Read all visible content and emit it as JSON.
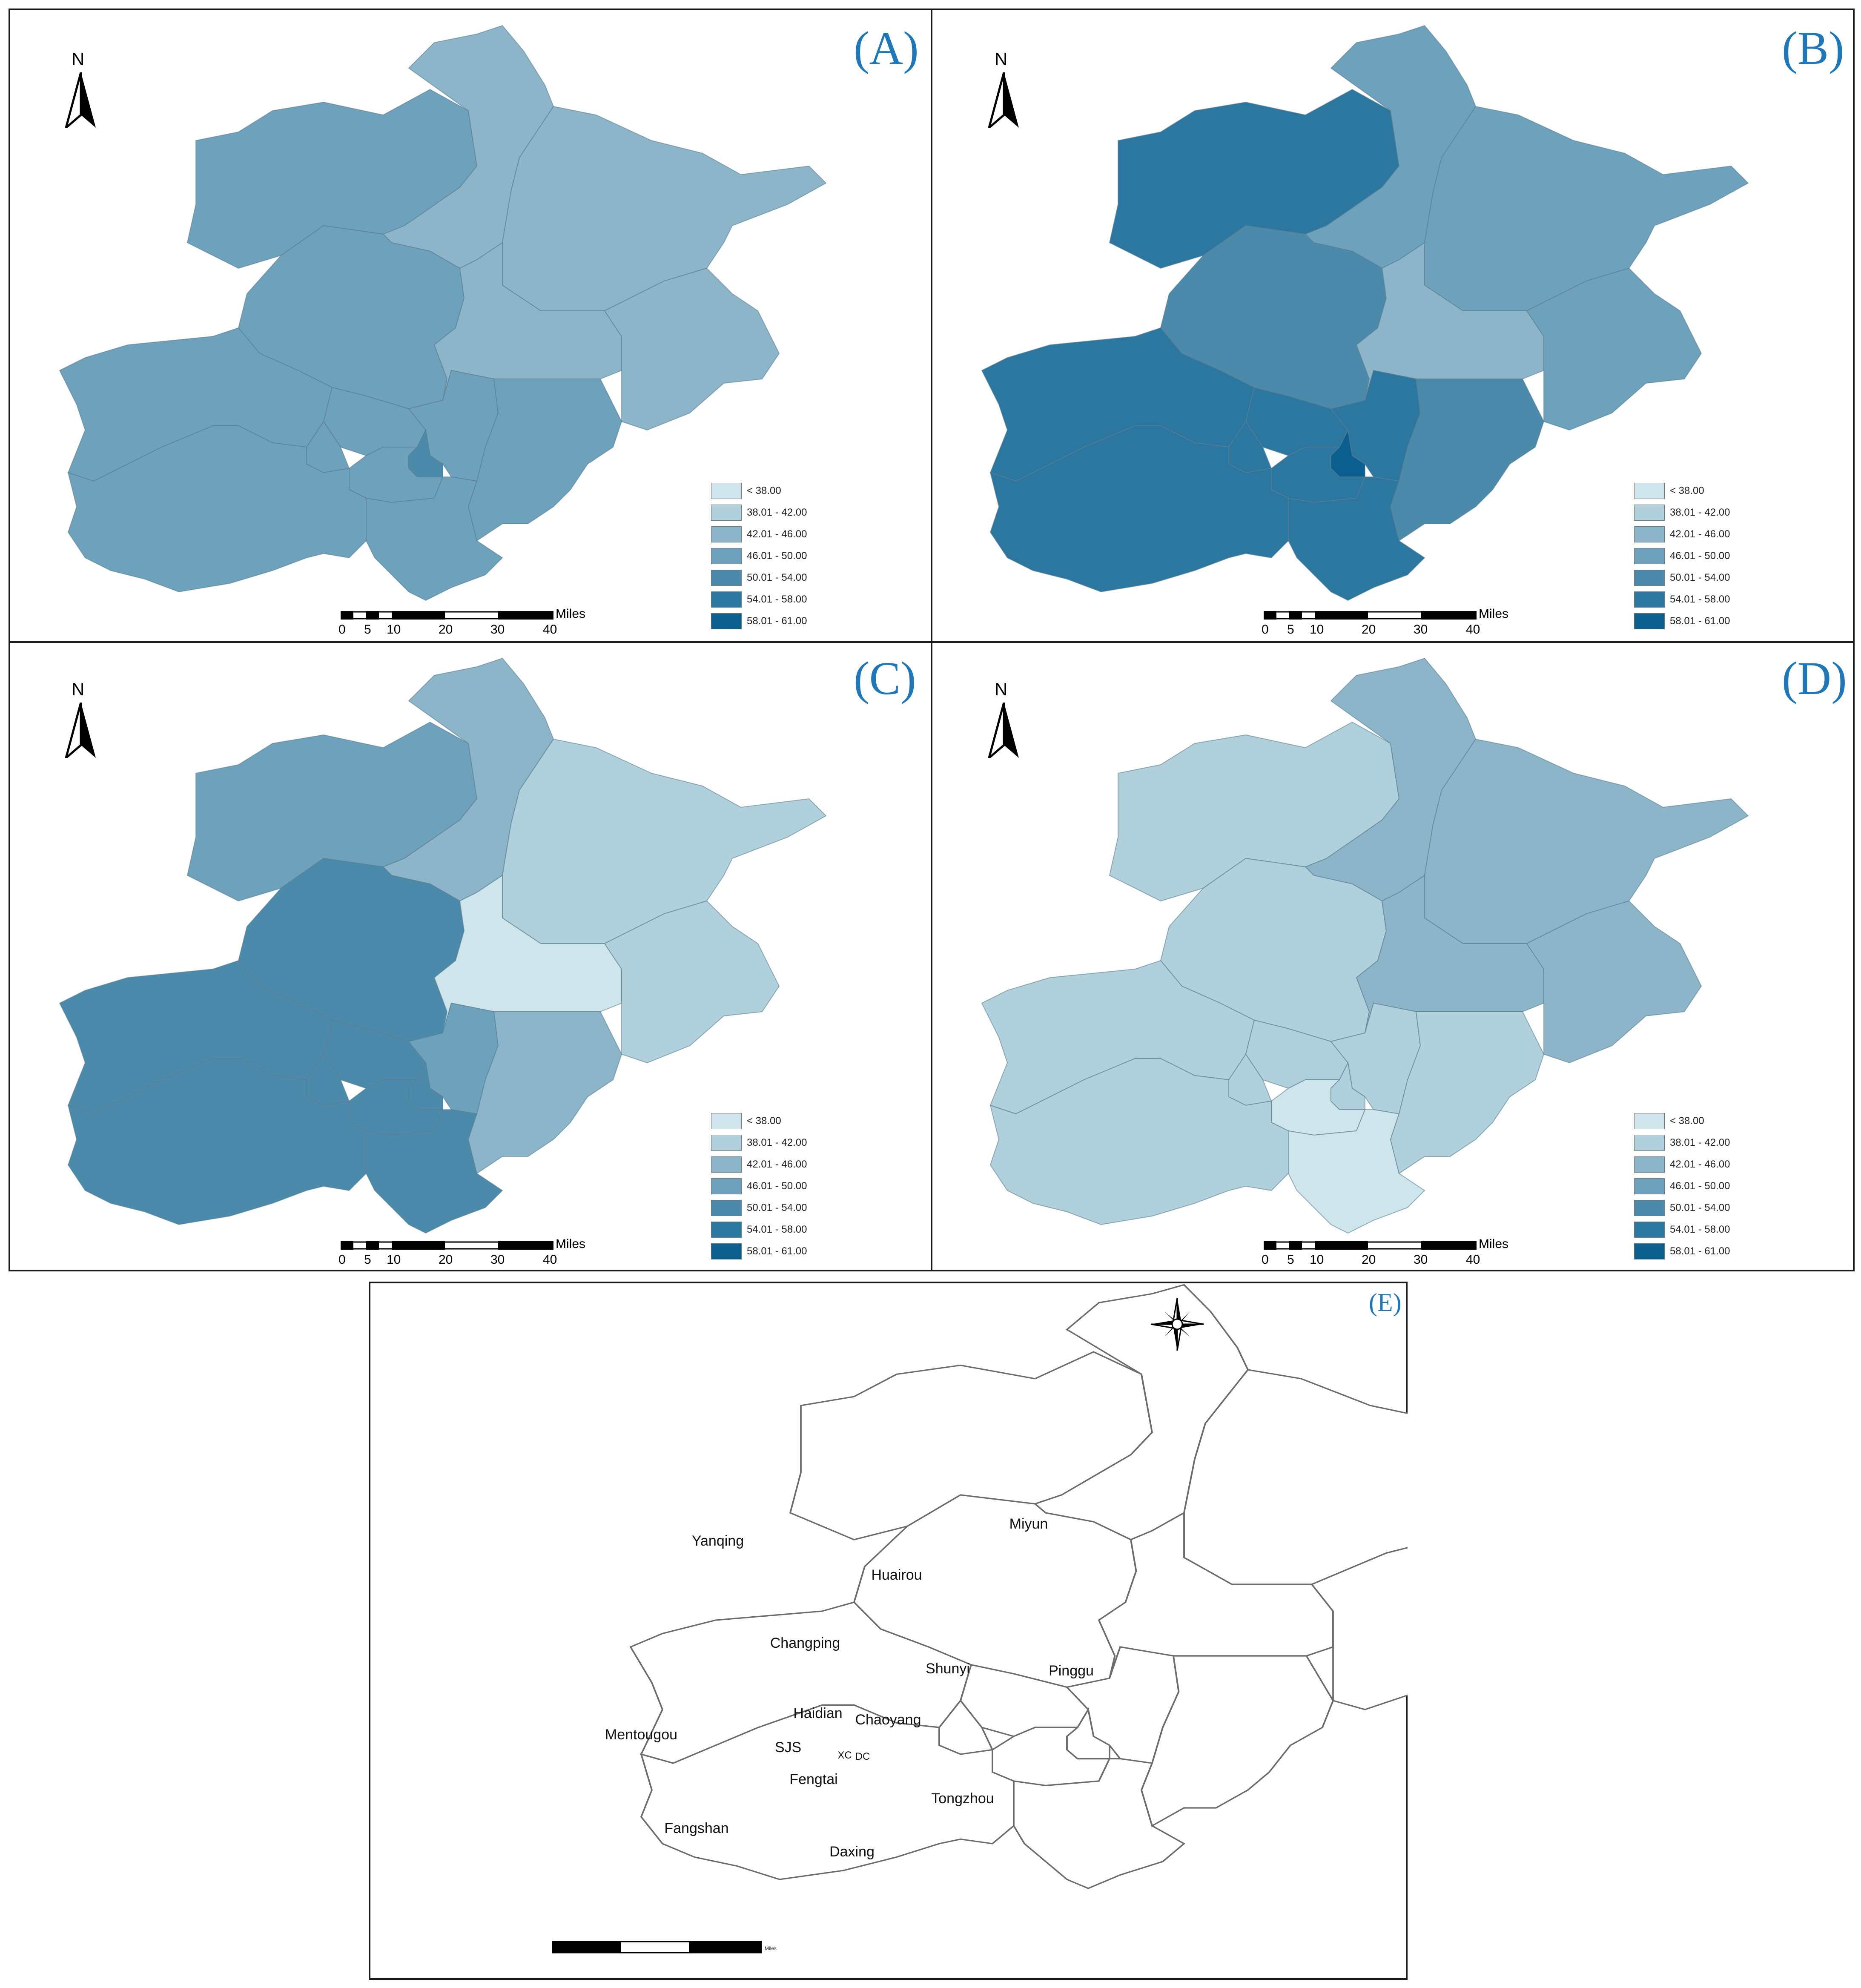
{
  "panels": [
    {
      "label": "(A)",
      "scale": {
        "ticks": [
          "0",
          "5",
          "10",
          "20",
          "30",
          "40"
        ],
        "unit": "Miles"
      },
      "district_classes": {
        "Yanqing": 3,
        "Huairou": 2,
        "Miyun": 2,
        "Changping": 3,
        "Shunyi": 2,
        "Pinggu": 2,
        "Mentougou": 3,
        "Fangshan": 3,
        "Haidian": 3,
        "SJS": 3,
        "Chaoyang": 3,
        "Fengtai": 3,
        "Daxing": 3,
        "Tongzhou": 3,
        "Core": 4
      }
    },
    {
      "label": "(B)",
      "scale": {
        "ticks": [
          "0",
          "5",
          "10",
          "20",
          "30",
          "40"
        ],
        "unit": "Miles"
      },
      "district_classes": {
        "Yanqing": 5,
        "Huairou": 3,
        "Miyun": 3,
        "Changping": 4,
        "Shunyi": 2,
        "Pinggu": 3,
        "Mentougou": 5,
        "Fangshan": 5,
        "Haidian": 5,
        "SJS": 5,
        "Chaoyang": 5,
        "Fengtai": 5,
        "Daxing": 5,
        "Tongzhou": 4,
        "Core": 6
      }
    },
    {
      "label": "(C)",
      "scale": {
        "ticks": [
          "0",
          "5",
          "10",
          "20",
          "30",
          "40"
        ],
        "unit": "Miles"
      },
      "district_classes": {
        "Yanqing": 3,
        "Huairou": 2,
        "Miyun": 1,
        "Changping": 4,
        "Shunyi": 0,
        "Pinggu": 1,
        "Mentougou": 4,
        "Fangshan": 4,
        "Haidian": 4,
        "SJS": 4,
        "Chaoyang": 3,
        "Fengtai": 4,
        "Daxing": 4,
        "Tongzhou": 2,
        "Core": 4
      }
    },
    {
      "label": "(D)",
      "scale": {
        "ticks": [
          "0",
          "5",
          "10",
          "20",
          "30",
          "40"
        ],
        "unit": "Miles"
      },
      "district_classes": {
        "Yanqing": 1,
        "Huairou": 2,
        "Miyun": 2,
        "Changping": 1,
        "Shunyi": 2,
        "Pinggu": 2,
        "Mentougou": 1,
        "Fangshan": 1,
        "Haidian": 1,
        "SJS": 1,
        "Chaoyang": 1,
        "Fengtai": 0,
        "Daxing": 0,
        "Tongzhou": 1,
        "Core": 1
      }
    }
  ],
  "north_letter": "N",
  "legend": {
    "classes": [
      "< 38.00",
      "38.01 - 42.00",
      "42.01 - 46.00",
      "46.01 - 50.00",
      "50.01 - 54.00",
      "54.01 - 58.00",
      "58.01 - 61.00"
    ],
    "colors": [
      "#cde5eb",
      "#b0d0dc",
      "#8db5c9",
      "#6ea1bc",
      "#4b8aab",
      "#2b77a0",
      "#0a5f8f"
    ]
  },
  "reference_map": {
    "label": "(E)",
    "districts": [
      "Yanqing",
      "Huairou",
      "Miyun",
      "Changping",
      "Shunyi",
      "Pinggu",
      "Mentougou",
      "Haidian",
      "Chaoyang",
      "SJS",
      "XC",
      "DC",
      "Fengtai",
      "Fangshan",
      "Daxing",
      "Tongzhou"
    ],
    "scale_unit": "Miles"
  },
  "colors": {
    "panel_label": "#1f77b8",
    "border": "#1a1a1a",
    "district_stroke": "#5a7d91"
  }
}
